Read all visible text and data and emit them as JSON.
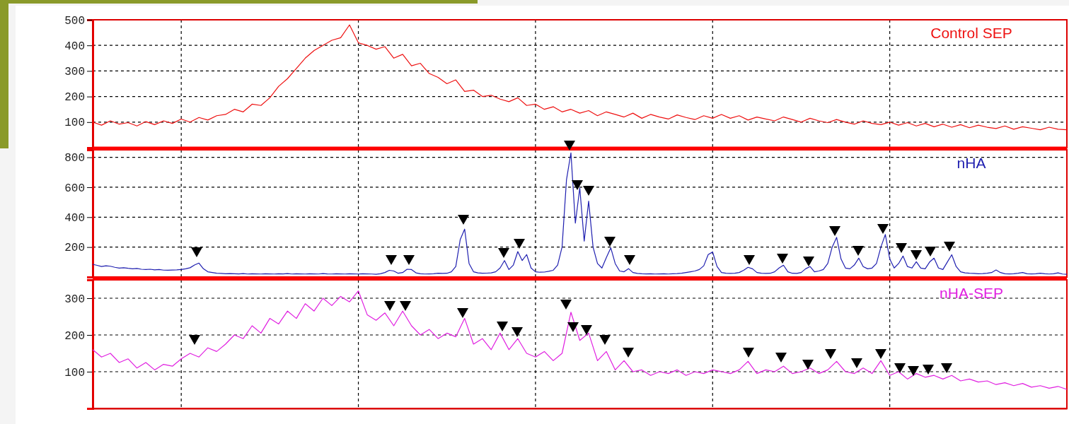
{
  "chart_data": [
    {
      "type": "line",
      "categories": [
        null,
        null,
        null,
        null,
        null,
        null,
        null,
        null,
        null,
        null,
        null,
        null,
        null,
        null,
        null,
        null,
        null,
        null,
        null,
        null,
        null,
        null,
        null,
        null,
        null,
        null,
        null,
        null,
        null,
        null,
        null,
        null,
        null,
        null,
        null,
        null,
        null,
        null,
        null,
        null,
        null,
        null,
        null,
        null,
        null,
        null,
        null,
        null,
        null,
        null,
        null,
        null,
        null,
        null,
        null,
        null,
        null,
        null,
        null,
        null,
        null,
        null,
        null,
        null,
        null,
        null,
        null,
        null,
        null,
        null,
        null,
        null,
        null,
        null,
        null,
        null,
        null,
        null,
        null,
        null,
        null,
        null,
        null,
        null,
        null,
        null,
        null,
        null,
        null,
        null,
        null,
        null,
        null,
        null,
        null,
        null,
        null,
        null,
        null,
        null,
        null,
        null,
        null,
        null,
        null,
        null,
        null,
        null,
        null,
        null,
        null
      ],
      "ylim": [
        0,
        500
      ],
      "yticks": [
        100,
        200,
        300,
        400,
        500
      ],
      "grid": true,
      "series": [
        {
          "name": "Control SEP",
          "color": "#ee1111",
          "values": [
            100,
            88,
            105,
            92,
            98,
            85,
            102,
            90,
            105,
            95,
            112,
            100,
            118,
            108,
            125,
            130,
            150,
            140,
            170,
            165,
            195,
            240,
            270,
            310,
            350,
            380,
            400,
            420,
            430,
            480,
            410,
            400,
            385,
            395,
            350,
            365,
            320,
            330,
            290,
            275,
            250,
            265,
            220,
            225,
            200,
            205,
            190,
            180,
            195,
            165,
            170,
            150,
            160,
            140,
            150,
            135,
            145,
            125,
            140,
            130,
            120,
            135,
            115,
            130,
            120,
            112,
            128,
            118,
            110,
            125,
            115,
            130,
            115,
            125,
            108,
            120,
            112,
            105,
            120,
            110,
            100,
            115,
            105,
            98,
            110,
            100,
            92,
            105,
            95,
            90,
            100,
            88,
            98,
            85,
            95,
            82,
            92,
            80,
            90,
            78,
            88,
            80,
            75,
            85,
            72,
            82,
            76,
            70,
            80,
            72,
            70
          ]
        }
      ]
    },
    {
      "type": "line",
      "categories": [
        null,
        null,
        null,
        null,
        null,
        null,
        null,
        null,
        null,
        null,
        null,
        null,
        null,
        null,
        null,
        null,
        null,
        null,
        null,
        null,
        null,
        null,
        null,
        null,
        null,
        null,
        null,
        null,
        null,
        null,
        null,
        null,
        null,
        null,
        null,
        null,
        null,
        null,
        null,
        null,
        null,
        null,
        null,
        null,
        null,
        null,
        null,
        null,
        null,
        null,
        null,
        null,
        null,
        null,
        null,
        null,
        null,
        null,
        null,
        null,
        null,
        null,
        null,
        null,
        null,
        null,
        null,
        null,
        null,
        null,
        null,
        null,
        null,
        null,
        null,
        null,
        null,
        null,
        null,
        null,
        null,
        null,
        null,
        null,
        null,
        null,
        null,
        null,
        null,
        null,
        null,
        null,
        null,
        null,
        null,
        null,
        null,
        null,
        null,
        null,
        null,
        null,
        null,
        null,
        null,
        null,
        null,
        null,
        null,
        null,
        null,
        null,
        null,
        null,
        null,
        null,
        null,
        null,
        null,
        null,
        null,
        null,
        null,
        null,
        null,
        null,
        null,
        null,
        null,
        null,
        null,
        null,
        null,
        null,
        null,
        null,
        null,
        null,
        null,
        null,
        null,
        null,
        null,
        null,
        null,
        null,
        null,
        null,
        null,
        null,
        null,
        null,
        null,
        null,
        null,
        null,
        null,
        null,
        null,
        null,
        null,
        null,
        null,
        null,
        null,
        null,
        null,
        null,
        null,
        null,
        null,
        null,
        null,
        null,
        null,
        null,
        null,
        null,
        null,
        null,
        null,
        null,
        null,
        null,
        null,
        null,
        null,
        null,
        null,
        null,
        null,
        null,
        null,
        null,
        null,
        null,
        null,
        null,
        null,
        null,
        null,
        null,
        null,
        null,
        null,
        null,
        null,
        null,
        null,
        null,
        null,
        null,
        null,
        null,
        null,
        null,
        null,
        null,
        null,
        null,
        null
      ],
      "ylim": [
        0,
        850
      ],
      "yticks": [
        200,
        400,
        600,
        800
      ],
      "grid": true,
      "series": [
        {
          "name": "nHA",
          "color": "#2020b0",
          "values": [
            85,
            78,
            70,
            75,
            72,
            65,
            60,
            62,
            58,
            55,
            57,
            52,
            50,
            52,
            48,
            50,
            46,
            45,
            47,
            48,
            50,
            55,
            62,
            80,
            93,
            55,
            35,
            30,
            25,
            24,
            22,
            23,
            22,
            21,
            23,
            20,
            22,
            21,
            20,
            22,
            21,
            20,
            22,
            21,
            23,
            20,
            22,
            21,
            20,
            22,
            21,
            20,
            23,
            21,
            20,
            22,
            21,
            20,
            22,
            21,
            20,
            22,
            21,
            20,
            18,
            22,
            30,
            45,
            40,
            25,
            30,
            52,
            50,
            28,
            22,
            20,
            21,
            22,
            25,
            24,
            25,
            35,
            70,
            250,
            320,
            90,
            35,
            28,
            25,
            26,
            28,
            35,
            60,
            110,
            50,
            80,
            170,
            110,
            150,
            60,
            35,
            32,
            33,
            38,
            45,
            80,
            200,
            650,
            830,
            360,
            595,
            240,
            507,
            200,
            90,
            60,
            130,
            195,
            90,
            40,
            35,
            56,
            30,
            24,
            22,
            21,
            22,
            20,
            21,
            22,
            20,
            22,
            23,
            25,
            30,
            35,
            40,
            50,
            75,
            150,
            167,
            70,
            30,
            25,
            24,
            25,
            30,
            45,
            65,
            55,
            30,
            25,
            24,
            25,
            35,
            60,
            79,
            35,
            25,
            24,
            30,
            55,
            70,
            35,
            40,
            50,
            90,
            200,
            265,
            120,
            60,
            55,
            80,
            126,
            70,
            55,
            60,
            90,
            200,
            284,
            120,
            60,
            90,
            140,
            70,
            60,
            102,
            60,
            55,
            100,
            126,
            60,
            50,
            100,
            149,
            70,
            35,
            28,
            25,
            24,
            22,
            23,
            25,
            30,
            47,
            30,
            22,
            21,
            22,
            25,
            30,
            22,
            21,
            22,
            25,
            22,
            20,
            22,
            28,
            20,
            18
          ]
        }
      ]
    },
    {
      "type": "line",
      "categories": [
        null,
        null,
        null,
        null,
        null,
        null,
        null,
        null,
        null,
        null,
        null,
        null,
        null,
        null,
        null,
        null,
        null,
        null,
        null,
        null,
        null,
        null,
        null,
        null,
        null,
        null,
        null,
        null,
        null,
        null,
        null,
        null,
        null,
        null,
        null,
        null,
        null,
        null,
        null,
        null,
        null,
        null,
        null,
        null,
        null,
        null,
        null,
        null,
        null,
        null,
        null,
        null,
        null,
        null,
        null,
        null,
        null,
        null,
        null,
        null,
        null,
        null,
        null,
        null,
        null,
        null,
        null,
        null,
        null,
        null,
        null,
        null,
        null,
        null,
        null,
        null,
        null,
        null,
        null,
        null,
        null,
        null,
        null,
        null,
        null,
        null,
        null,
        null,
        null,
        null,
        null,
        null,
        null,
        null,
        null,
        null,
        null,
        null,
        null,
        null,
        null,
        null,
        null,
        null,
        null,
        null,
        null,
        null,
        null,
        null,
        null
      ],
      "ylim": [
        0,
        350
      ],
      "yticks": [
        100,
        200,
        300
      ],
      "grid": true,
      "series": [
        {
          "name": "nHA-SEP",
          "color": "#e020e0",
          "values": [
            160,
            140,
            150,
            125,
            135,
            110,
            125,
            105,
            120,
            115,
            135,
            150,
            140,
            165,
            155,
            175,
            200,
            190,
            225,
            205,
            245,
            230,
            265,
            245,
            285,
            265,
            300,
            280,
            305,
            290,
            320,
            255,
            240,
            260,
            225,
            265,
            225,
            200,
            215,
            190,
            205,
            195,
            245,
            175,
            190,
            160,
            205,
            160,
            190,
            150,
            140,
            155,
            130,
            150,
            262,
            185,
            205,
            130,
            155,
            105,
            130,
            100,
            105,
            90,
            100,
            95,
            105,
            90,
            100,
            95,
            105,
            100,
            95,
            105,
            128,
            95,
            105,
            100,
            115,
            95,
            100,
            110,
            95,
            105,
            128,
            100,
            95,
            110,
            95,
            130,
            90,
            100,
            80,
            95,
            85,
            90,
            80,
            90,
            75,
            80,
            72,
            75,
            65,
            70,
            62,
            68,
            58,
            62,
            55,
            60,
            52
          ]
        }
      ]
    }
  ]
}
